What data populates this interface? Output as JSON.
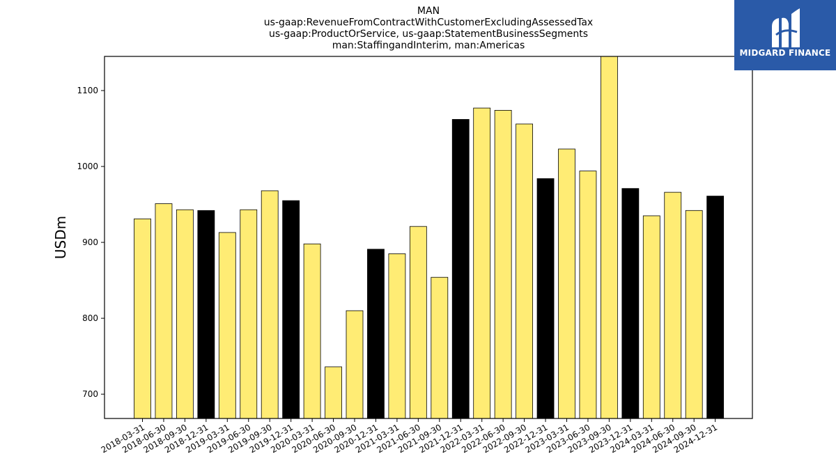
{
  "chart_data": {
    "type": "bar",
    "title_lines": [
      "MAN",
      "us-gaap:RevenueFromContractWithCustomerExcludingAssessedTax",
      "us-gaap:ProductOrService, us-gaap:StatementBusinessSegments",
      "man:StaffingandInterim, man:Americas"
    ],
    "ylabel": "USDm",
    "xlabel": "",
    "ylim": [
      668,
      1145
    ],
    "yticks": [
      700,
      800,
      900,
      1000,
      1100
    ],
    "grid": false,
    "colors": {
      "quarter": "#ffec74",
      "year_end": "#000000",
      "edge": "#000000"
    },
    "categories": [
      "2018-03-31",
      "2018-06-30",
      "2018-09-30",
      "2018-12-31",
      "2019-03-31",
      "2019-06-30",
      "2019-09-30",
      "2019-12-31",
      "2020-03-31",
      "2020-06-30",
      "2020-09-30",
      "2020-12-31",
      "2021-03-31",
      "2021-06-30",
      "2021-09-30",
      "2021-12-31",
      "2022-03-31",
      "2022-06-30",
      "2022-09-30",
      "2022-12-31",
      "2023-03-31",
      "2023-06-30",
      "2023-09-30",
      "2023-12-31",
      "2024-03-31",
      "2024-06-30",
      "2024-09-30",
      "2024-12-31"
    ],
    "values": [
      931,
      951,
      943,
      942,
      913,
      943,
      968,
      955,
      898,
      736,
      810,
      891,
      885,
      921,
      854,
      1062,
      1077,
      1074,
      1056,
      984,
      1023,
      994,
      1148,
      971,
      935,
      966,
      942,
      961
    ],
    "year_end_flags": [
      false,
      false,
      false,
      true,
      false,
      false,
      false,
      true,
      false,
      false,
      false,
      true,
      false,
      false,
      false,
      true,
      false,
      false,
      false,
      true,
      false,
      false,
      false,
      true,
      false,
      false,
      false,
      true
    ]
  },
  "logo": {
    "text": "MIDGARD FINANCE",
    "icon": "midgard-logo-icon"
  }
}
